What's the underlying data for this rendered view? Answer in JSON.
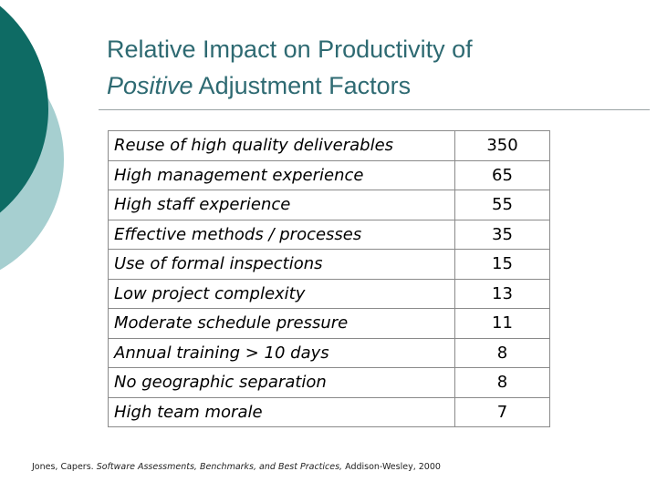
{
  "slide": {
    "title_line1": "Relative Impact on Productivity of",
    "title_line2_italic": "Positive",
    "title_line2_rest": " Adjustment Factors",
    "colors": {
      "title": "#2e6a72",
      "deco_dark": "#0e6b64",
      "deco_light": "#a6cfd0"
    }
  },
  "factors": [
    {
      "name": "Reuse of high quality deliverables",
      "value": "350"
    },
    {
      "name": "High management experience",
      "value": "65"
    },
    {
      "name": "High staff experience",
      "value": "55"
    },
    {
      "name": "Effective methods / processes",
      "value": "35"
    },
    {
      "name": "Use of formal inspections",
      "value": "15"
    },
    {
      "name": "Low project complexity",
      "value": "13"
    },
    {
      "name": "Moderate schedule pressure",
      "value": "11"
    },
    {
      "name": "Annual training > 10 days",
      "value": "8"
    },
    {
      "name": "No geographic separation",
      "value": "8"
    },
    {
      "name": "High team morale",
      "value": "7"
    }
  ],
  "citation": {
    "author": "Jones, Capers. ",
    "work": "Software Assessments, Benchmarks, and Best Practices,",
    "publisher": " Addison-Wesley, 2000"
  }
}
